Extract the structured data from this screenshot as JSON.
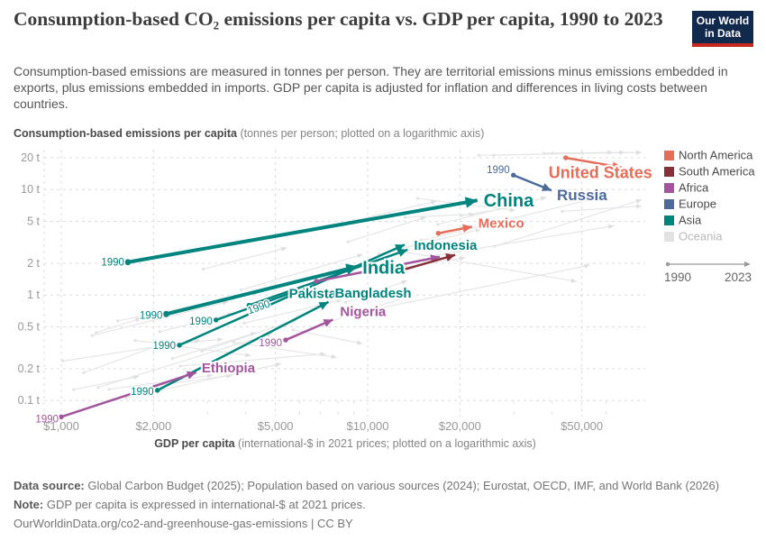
{
  "header": {
    "title": "Consumption-based CO₂ emissions per capita vs. GDP per capita, 1990 to 2023",
    "subtitle": "Consumption-based emissions are measured in tonnes per person. They are territorial emissions minus emissions embedded in exports, plus emissions embedded in imports. GDP per capita is adjusted for inflation and differences in living costs between countries.",
    "logo_line1": "Our World",
    "logo_line2": "in Data"
  },
  "chart_data": {
    "type": "scatter",
    "title": "Consumption-based CO₂ emissions per capita vs. GDP per capita, 1990 to 2023",
    "x_axis": {
      "label_bold": "GDP per capita",
      "label_rest": " (international-$ in 2021 prices; plotted on a logarithmic axis)",
      "scale": "log",
      "ticks": [
        1000,
        2000,
        5000,
        10000,
        20000,
        50000
      ],
      "tick_labels": [
        "$1,000",
        "$2,000",
        "$5,000",
        "$10,000",
        "$20,000",
        "$50,000"
      ],
      "minor_ticks": [
        3000,
        4000,
        6000,
        7000,
        8000,
        9000,
        30000,
        40000,
        60000
      ],
      "range": [
        870,
        80000
      ]
    },
    "y_axis": {
      "label_bold": "Consumption-based emissions per capita",
      "label_rest": " (tonnes per person; plotted on a logarithmic axis)",
      "scale": "log",
      "ticks": [
        20,
        10,
        5,
        2,
        1,
        0.5,
        0.2,
        0.1
      ],
      "tick_labels": [
        "20 t",
        "10 t",
        "5 t",
        "2 t",
        "1 t",
        "0.5 t",
        "0.2 t",
        "0.1 t"
      ],
      "range": [
        0.055,
        28
      ]
    },
    "legend": {
      "items": [
        {
          "key": "north-america",
          "label": "North America",
          "color": "#E56E5A",
          "muted": false
        },
        {
          "key": "south-america",
          "label": "South America",
          "color": "#883039",
          "muted": false
        },
        {
          "key": "africa",
          "label": "Africa",
          "color": "#A2559C",
          "muted": false
        },
        {
          "key": "europe",
          "label": "Europe",
          "color": "#4C6A9C",
          "muted": false
        },
        {
          "key": "asia",
          "label": "Asia",
          "color": "#00847E",
          "muted": false
        },
        {
          "key": "oceania",
          "label": "Oceania",
          "color": "#E2E2E2",
          "muted": true
        }
      ],
      "arrow": {
        "start_label": "1990",
        "end_label": "2023"
      }
    },
    "series": [
      {
        "key": "china",
        "name": "China",
        "region": "Asia",
        "color": "#00847E",
        "gdp_1990": 1650,
        "co2_1990": 2.05,
        "gdp_2023": 22800,
        "co2_2023": 7.9,
        "width": 4,
        "label": {
          "size": 20,
          "dx": 7,
          "dy": 7
        },
        "year_label": {
          "dx": -4,
          "dy": 4
        }
      },
      {
        "key": "india",
        "name": "India",
        "region": "Asia",
        "color": "#00847E",
        "gdp_1990": 2200,
        "co2_1990": 0.66,
        "gdp_2023": 9300,
        "co2_2023": 1.87,
        "width": 4,
        "label": {
          "size": 20,
          "dx": 5,
          "dy": 8
        },
        "year_label": {
          "dx": -4,
          "dy": 5
        }
      },
      {
        "key": "indonesia",
        "name": "Indonesia",
        "region": "Asia",
        "color": "#00847E",
        "gdp_1990": 4100,
        "co2_1990": 0.8,
        "gdp_2023": 13500,
        "co2_2023": 2.69,
        "width": 2.5,
        "label": {
          "size": 15,
          "dx": 7,
          "dy": 0
        },
        "year_label": {
          "dx": 0,
          "dy": 10,
          "rotate": -20,
          "anchor": "start"
        }
      },
      {
        "key": "pakistan",
        "name": "Pakistan",
        "region": "Asia",
        "color": "#00847E",
        "gdp_1990": 3200,
        "co2_1990": 0.58,
        "gdp_2023": 6000,
        "co2_2023": 1.12,
        "width": 2.5,
        "label": {
          "size": 15,
          "dx": -12,
          "dy": 9
        },
        "year_label": {
          "dx": -4,
          "dy": 5
        }
      },
      {
        "key": "asia-unlabeled",
        "name": "",
        "region": "Asia",
        "color": "#00847E",
        "gdp_1990": 2430,
        "co2_1990": 0.335,
        "gdp_2023": 13200,
        "co2_2023": 3.0,
        "width": 2.5,
        "year_label": {
          "dx": -4,
          "dy": 4
        }
      },
      {
        "key": "bangladesh",
        "name": "Bangladesh",
        "region": "Asia",
        "color": "#00847E",
        "gdp_1990": 2060,
        "co2_1990": 0.125,
        "gdp_2023": 7450,
        "co2_2023": 0.86,
        "width": 2.5,
        "label": {
          "size": 15,
          "dx": 7,
          "dy": -5
        },
        "year_label": {
          "dx": -4,
          "dy": 5
        }
      },
      {
        "key": "ethiopia",
        "name": "Ethiopia",
        "region": "Africa",
        "color": "#A2559C",
        "gdp_1990": 1000,
        "co2_1990": 0.07,
        "gdp_2023": 2760,
        "co2_2023": 0.185,
        "width": 2.5,
        "label": {
          "size": 15,
          "dx": 6,
          "dy": 0
        },
        "year_label": {
          "dx": -3,
          "dy": 6
        }
      },
      {
        "key": "nigeria",
        "name": "Nigeria",
        "region": "Africa",
        "color": "#A2559C",
        "gdp_1990": 5400,
        "co2_1990": 0.375,
        "gdp_2023": 7700,
        "co2_2023": 0.585,
        "width": 2.5,
        "label": {
          "size": 15,
          "dx": 8,
          "dy": -4
        },
        "year_label": {
          "dx": -4,
          "dy": 7
        }
      },
      {
        "key": "africa-unlabeled",
        "name": "",
        "region": "Africa",
        "color": "#A2559C",
        "gdp_1990": 6800,
        "co2_1990": 1.35,
        "gdp_2023": 17200,
        "co2_2023": 2.3,
        "width": 2.5
      },
      {
        "key": "south-america-unlabeled",
        "name": "",
        "region": "South America",
        "color": "#883039",
        "gdp_1990": 12400,
        "co2_1990": 1.66,
        "gdp_2023": 19300,
        "co2_2023": 2.4,
        "width": 2.5
      },
      {
        "key": "mexico",
        "name": "Mexico",
        "region": "North America",
        "color": "#E56E5A",
        "gdp_1990": 17000,
        "co2_1990": 3.85,
        "gdp_2023": 21900,
        "co2_2023": 4.45,
        "width": 2.5,
        "label": {
          "size": 15,
          "dx": 7,
          "dy": 1
        }
      },
      {
        "key": "united-states",
        "name": "United States",
        "region": "North America",
        "color": "#E56E5A",
        "gdp_1990": 44300,
        "co2_1990": 20.0,
        "gdp_2023": 67400,
        "co2_2023": 16.2,
        "width": 2.5,
        "label": {
          "size": 18,
          "dx": -81,
          "dy": 12
        }
      },
      {
        "key": "russia",
        "name": "Russia",
        "region": "Europe",
        "color": "#4C6A9C",
        "gdp_1990": 29900,
        "co2_1990": 13.7,
        "gdp_2023": 39800,
        "co2_2023": 9.8,
        "width": 2.5,
        "label": {
          "size": 17,
          "dx": 6,
          "dy": 11
        },
        "year_label": {
          "dx": -4,
          "dy": -2
        }
      }
    ],
    "background_arrows": {
      "count": 42,
      "seed": 9
    }
  },
  "footer": {
    "source_label": "Data source:",
    "source_text": " Global Carbon Budget (2025); Population based on various sources (2024); Eurostat, OECD, IMF, and World Bank (2026)",
    "note_label": "Note:",
    "note_text": " GDP per capita is expressed in international-$ at 2021 prices.",
    "link": "OurWorldinData.org/co2-and-greenhouse-gas-emissions | CC BY"
  }
}
